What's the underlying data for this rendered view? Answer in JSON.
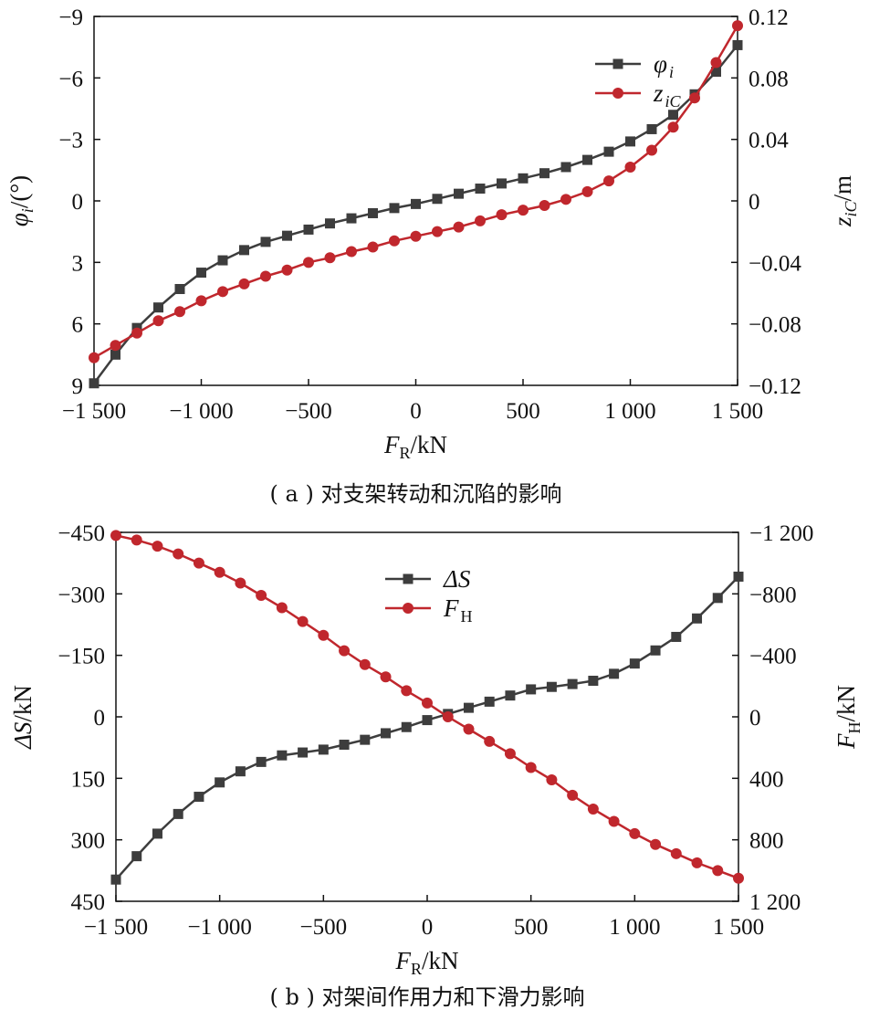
{
  "chart_data": [
    {
      "type": "line",
      "caption": "( a ) 对支架转动和沉陷的影响",
      "xlabel": {
        "main": "F",
        "sub": "R",
        "unit": "/kN"
      },
      "ylabel_left": {
        "main": "φ",
        "sub": "i",
        "unit": "/(°)"
      },
      "ylabel_right": {
        "main": "z",
        "sub": "iC",
        "unit": "/m"
      },
      "xlim": [
        -1500,
        1500
      ],
      "ylim_left": [
        -9,
        9
      ],
      "ylim_right": [
        0.12,
        -0.12
      ],
      "x_ticks": [
        -1500,
        -1000,
        -500,
        0,
        500,
        1000,
        1500
      ],
      "x_tick_labels": [
        "−1 500",
        "−1 000",
        "−500",
        "0",
        "500",
        "1 000",
        "1 500"
      ],
      "y_left_ticks": [
        9,
        6,
        3,
        0,
        -3,
        -6,
        -9
      ],
      "y_left_tick_labels": [
        "9",
        "6",
        "3",
        "0",
        "−3",
        "−6",
        "−9"
      ],
      "y_right_ticks": [
        -0.12,
        -0.08,
        -0.04,
        0,
        0.04,
        0.08,
        0.12
      ],
      "y_right_tick_labels": [
        "−0.12",
        "−0.08",
        "−0.04",
        "0",
        "0.04",
        "0.08",
        "0.12"
      ],
      "grid": false,
      "legend_position": "top-right",
      "series": [
        {
          "name": "φi",
          "legend": {
            "main": "φ",
            "sub": "i"
          },
          "axis": "left",
          "marker": "square",
          "color": "#3d3d3d",
          "x": [
            -1500,
            -1400,
            -1300,
            -1200,
            -1100,
            -1000,
            -900,
            -800,
            -700,
            -600,
            -500,
            -400,
            -300,
            -200,
            -100,
            0,
            100,
            200,
            300,
            400,
            500,
            600,
            700,
            800,
            900,
            1000,
            1100,
            1200,
            1300,
            1400,
            1500
          ],
          "values": [
            8.9,
            7.5,
            6.2,
            5.2,
            4.3,
            3.5,
            2.9,
            2.4,
            2.0,
            1.7,
            1.4,
            1.1,
            0.85,
            0.6,
            0.35,
            0.15,
            -0.1,
            -0.35,
            -0.6,
            -0.85,
            -1.1,
            -1.35,
            -1.65,
            -2.0,
            -2.4,
            -2.9,
            -3.5,
            -4.2,
            -5.2,
            -6.3,
            -7.6
          ]
        },
        {
          "name": "ziC",
          "legend": {
            "main": "z",
            "sub": "iC"
          },
          "axis": "right",
          "marker": "circle",
          "color": "#c0272d",
          "x": [
            -1500,
            -1400,
            -1300,
            -1200,
            -1100,
            -1000,
            -900,
            -800,
            -700,
            -600,
            -500,
            -400,
            -300,
            -200,
            -100,
            0,
            100,
            200,
            300,
            400,
            500,
            600,
            700,
            800,
            900,
            1000,
            1100,
            1200,
            1300,
            1400,
            1500
          ],
          "values": [
            -0.102,
            -0.094,
            -0.086,
            -0.078,
            -0.072,
            -0.065,
            -0.059,
            -0.054,
            -0.049,
            -0.045,
            -0.04,
            -0.037,
            -0.033,
            -0.03,
            -0.026,
            -0.023,
            -0.02,
            -0.017,
            -0.013,
            -0.009,
            -0.006,
            -0.003,
            0.001,
            0.006,
            0.013,
            0.022,
            0.033,
            0.048,
            0.067,
            0.09,
            0.114
          ]
        }
      ]
    },
    {
      "type": "line",
      "caption": "( b ) 对架间作用力和下滑力影响",
      "xlabel": {
        "main": "F",
        "sub": "R",
        "unit": "/kN"
      },
      "ylabel_left": {
        "main": "ΔS",
        "sub": "",
        "unit": "/kN"
      },
      "ylabel_right": {
        "main": "F",
        "sub": "H",
        "unit": "/kN"
      },
      "xlim": [
        -1500,
        1500
      ],
      "ylim_left": [
        -450,
        450
      ],
      "ylim_right": [
        -1200,
        1200
      ],
      "x_ticks": [
        -1500,
        -1000,
        -500,
        0,
        500,
        1000,
        1500
      ],
      "x_tick_labels": [
        "−1 500",
        "−1 000",
        "−500",
        "0",
        "500",
        "1 000",
        "1 500"
      ],
      "y_left_ticks": [
        450,
        300,
        150,
        0,
        -150,
        -300,
        -450
      ],
      "y_left_tick_labels": [
        "450",
        "300",
        "150",
        "0",
        "−150",
        "−300",
        "−450"
      ],
      "y_right_ticks": [
        1200,
        800,
        400,
        0,
        -400,
        -800,
        -1200
      ],
      "y_right_tick_labels": [
        "1 200",
        "800",
        "400",
        "0",
        "−400",
        "−800",
        "−1 200"
      ],
      "grid": false,
      "legend_position": "top-center",
      "series": [
        {
          "name": "ΔS",
          "legend": {
            "main": "ΔS",
            "sub": ""
          },
          "axis": "left",
          "marker": "square",
          "color": "#3d3d3d",
          "x": [
            -1500,
            -1400,
            -1300,
            -1200,
            -1100,
            -1000,
            -900,
            -800,
            -700,
            -600,
            -500,
            -400,
            -300,
            -200,
            -100,
            0,
            100,
            200,
            300,
            400,
            500,
            600,
            700,
            800,
            900,
            1000,
            1100,
            1200,
            1300,
            1400,
            1500
          ],
          "values": [
            397,
            340,
            285,
            237,
            195,
            160,
            133,
            110,
            94,
            87,
            80,
            68,
            56,
            40,
            25,
            8,
            -7,
            -22,
            -37,
            -52,
            -67,
            -73,
            -80,
            -88,
            -105,
            -130,
            -162,
            -195,
            -240,
            -290,
            -342
          ]
        },
        {
          "name": "FH",
          "legend": {
            "main": "F",
            "sub": "H"
          },
          "axis": "right",
          "marker": "circle",
          "color": "#c0272d",
          "x": [
            -1500,
            -1400,
            -1300,
            -1200,
            -1100,
            -1000,
            -900,
            -800,
            -700,
            -600,
            -500,
            -400,
            -300,
            -200,
            -100,
            0,
            100,
            200,
            300,
            400,
            500,
            600,
            700,
            800,
            900,
            1000,
            1100,
            1200,
            1300,
            1400,
            1500
          ],
          "values": [
            -1180,
            -1150,
            -1110,
            -1060,
            -1000,
            -940,
            -870,
            -790,
            -710,
            -620,
            -530,
            -430,
            -340,
            -260,
            -170,
            -90,
            0,
            80,
            160,
            240,
            330,
            410,
            510,
            600,
            680,
            760,
            830,
            890,
            950,
            1000,
            1050
          ]
        }
      ]
    }
  ]
}
